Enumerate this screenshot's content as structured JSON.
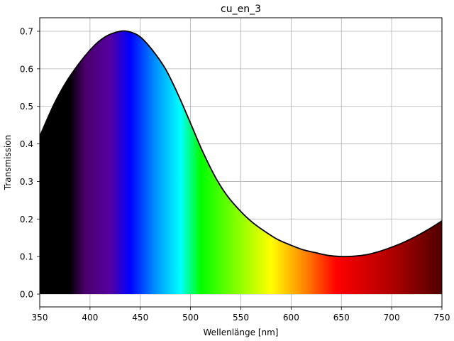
{
  "chart_data": {
    "type": "area",
    "title": "cu_en_3",
    "xlabel": "Wellenlänge [nm]",
    "ylabel": "Transmission",
    "xlim": [
      350,
      750
    ],
    "ylim": [
      -0.033,
      0.735
    ],
    "grid": true,
    "legend": null,
    "fill": "visible-spectrum gradient under curve",
    "line_color": "#000000",
    "x_ticks": [
      350,
      400,
      450,
      500,
      550,
      600,
      650,
      700,
      750
    ],
    "x_tick_labels": [
      "350",
      "400",
      "450",
      "500",
      "550",
      "600",
      "650",
      "700",
      "750"
    ],
    "y_ticks": [
      0.0,
      0.1,
      0.2,
      0.3,
      0.4,
      0.5,
      0.6,
      0.7
    ],
    "y_tick_labels": [
      "0.0",
      "0.1",
      "0.2",
      "0.3",
      "0.4",
      "0.5",
      "0.6",
      "0.7"
    ],
    "series": [
      {
        "name": "cu_en_3",
        "x": [
          350,
          365,
          380,
          400,
          415,
          430,
          440,
          450,
          462,
          475,
          487,
          500,
          512,
          525,
          537,
          550,
          562,
          575,
          587,
          600,
          612,
          625,
          637,
          650,
          662,
          675,
          687,
          700,
          712,
          725,
          737,
          750
        ],
        "y": [
          0.42,
          0.51,
          0.58,
          0.65,
          0.685,
          0.7,
          0.698,
          0.685,
          0.65,
          0.6,
          0.535,
          0.455,
          0.38,
          0.31,
          0.26,
          0.22,
          0.19,
          0.165,
          0.145,
          0.13,
          0.118,
          0.11,
          0.103,
          0.1,
          0.101,
          0.105,
          0.113,
          0.125,
          0.138,
          0.155,
          0.173,
          0.195
        ]
      }
    ],
    "spectrum_stops": [
      {
        "nm": 350,
        "color": "#000000"
      },
      {
        "nm": 380,
        "color": "#000000"
      },
      {
        "nm": 395,
        "color": "#4a006a"
      },
      {
        "nm": 420,
        "color": "#5500a0"
      },
      {
        "nm": 440,
        "color": "#0000ff"
      },
      {
        "nm": 465,
        "color": "#0090ff"
      },
      {
        "nm": 490,
        "color": "#00ffff"
      },
      {
        "nm": 510,
        "color": "#00ff00"
      },
      {
        "nm": 545,
        "color": "#80ff00"
      },
      {
        "nm": 580,
        "color": "#ffff00"
      },
      {
        "nm": 615,
        "color": "#ff8000"
      },
      {
        "nm": 645,
        "color": "#ff0000"
      },
      {
        "nm": 700,
        "color": "#b00000"
      },
      {
        "nm": 750,
        "color": "#500000"
      }
    ]
  }
}
